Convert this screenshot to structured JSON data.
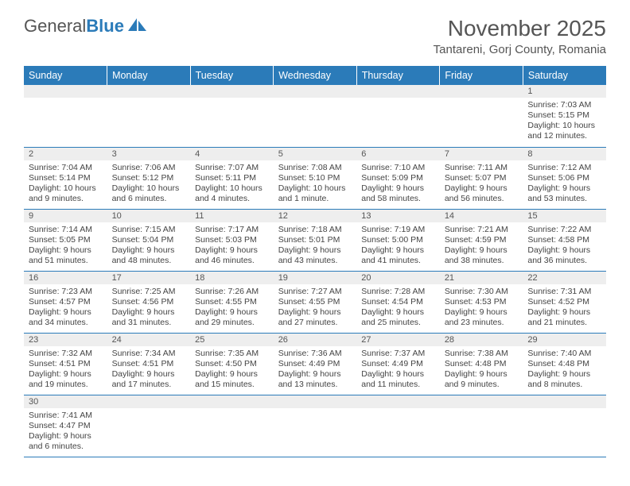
{
  "logo": {
    "part1": "General",
    "part2": "Blue"
  },
  "title": "November 2025",
  "location": "Tantareni, Gorj County, Romania",
  "colors": {
    "header_bg": "#2b7bb9",
    "header_text": "#ffffff",
    "daynum_bg": "#eeeeee",
    "border": "#2b7bb9",
    "text": "#444444",
    "title_text": "#555555"
  },
  "days_of_week": [
    "Sunday",
    "Monday",
    "Tuesday",
    "Wednesday",
    "Thursday",
    "Friday",
    "Saturday"
  ],
  "weeks": [
    [
      null,
      null,
      null,
      null,
      null,
      null,
      {
        "n": "1",
        "sunrise": "Sunrise: 7:03 AM",
        "sunset": "Sunset: 5:15 PM",
        "daylight": "Daylight: 10 hours and 12 minutes."
      }
    ],
    [
      {
        "n": "2",
        "sunrise": "Sunrise: 7:04 AM",
        "sunset": "Sunset: 5:14 PM",
        "daylight": "Daylight: 10 hours and 9 minutes."
      },
      {
        "n": "3",
        "sunrise": "Sunrise: 7:06 AM",
        "sunset": "Sunset: 5:12 PM",
        "daylight": "Daylight: 10 hours and 6 minutes."
      },
      {
        "n": "4",
        "sunrise": "Sunrise: 7:07 AM",
        "sunset": "Sunset: 5:11 PM",
        "daylight": "Daylight: 10 hours and 4 minutes."
      },
      {
        "n": "5",
        "sunrise": "Sunrise: 7:08 AM",
        "sunset": "Sunset: 5:10 PM",
        "daylight": "Daylight: 10 hours and 1 minute."
      },
      {
        "n": "6",
        "sunrise": "Sunrise: 7:10 AM",
        "sunset": "Sunset: 5:09 PM",
        "daylight": "Daylight: 9 hours and 58 minutes."
      },
      {
        "n": "7",
        "sunrise": "Sunrise: 7:11 AM",
        "sunset": "Sunset: 5:07 PM",
        "daylight": "Daylight: 9 hours and 56 minutes."
      },
      {
        "n": "8",
        "sunrise": "Sunrise: 7:12 AM",
        "sunset": "Sunset: 5:06 PM",
        "daylight": "Daylight: 9 hours and 53 minutes."
      }
    ],
    [
      {
        "n": "9",
        "sunrise": "Sunrise: 7:14 AM",
        "sunset": "Sunset: 5:05 PM",
        "daylight": "Daylight: 9 hours and 51 minutes."
      },
      {
        "n": "10",
        "sunrise": "Sunrise: 7:15 AM",
        "sunset": "Sunset: 5:04 PM",
        "daylight": "Daylight: 9 hours and 48 minutes."
      },
      {
        "n": "11",
        "sunrise": "Sunrise: 7:17 AM",
        "sunset": "Sunset: 5:03 PM",
        "daylight": "Daylight: 9 hours and 46 minutes."
      },
      {
        "n": "12",
        "sunrise": "Sunrise: 7:18 AM",
        "sunset": "Sunset: 5:01 PM",
        "daylight": "Daylight: 9 hours and 43 minutes."
      },
      {
        "n": "13",
        "sunrise": "Sunrise: 7:19 AM",
        "sunset": "Sunset: 5:00 PM",
        "daylight": "Daylight: 9 hours and 41 minutes."
      },
      {
        "n": "14",
        "sunrise": "Sunrise: 7:21 AM",
        "sunset": "Sunset: 4:59 PM",
        "daylight": "Daylight: 9 hours and 38 minutes."
      },
      {
        "n": "15",
        "sunrise": "Sunrise: 7:22 AM",
        "sunset": "Sunset: 4:58 PM",
        "daylight": "Daylight: 9 hours and 36 minutes."
      }
    ],
    [
      {
        "n": "16",
        "sunrise": "Sunrise: 7:23 AM",
        "sunset": "Sunset: 4:57 PM",
        "daylight": "Daylight: 9 hours and 34 minutes."
      },
      {
        "n": "17",
        "sunrise": "Sunrise: 7:25 AM",
        "sunset": "Sunset: 4:56 PM",
        "daylight": "Daylight: 9 hours and 31 minutes."
      },
      {
        "n": "18",
        "sunrise": "Sunrise: 7:26 AM",
        "sunset": "Sunset: 4:55 PM",
        "daylight": "Daylight: 9 hours and 29 minutes."
      },
      {
        "n": "19",
        "sunrise": "Sunrise: 7:27 AM",
        "sunset": "Sunset: 4:55 PM",
        "daylight": "Daylight: 9 hours and 27 minutes."
      },
      {
        "n": "20",
        "sunrise": "Sunrise: 7:28 AM",
        "sunset": "Sunset: 4:54 PM",
        "daylight": "Daylight: 9 hours and 25 minutes."
      },
      {
        "n": "21",
        "sunrise": "Sunrise: 7:30 AM",
        "sunset": "Sunset: 4:53 PM",
        "daylight": "Daylight: 9 hours and 23 minutes."
      },
      {
        "n": "22",
        "sunrise": "Sunrise: 7:31 AM",
        "sunset": "Sunset: 4:52 PM",
        "daylight": "Daylight: 9 hours and 21 minutes."
      }
    ],
    [
      {
        "n": "23",
        "sunrise": "Sunrise: 7:32 AM",
        "sunset": "Sunset: 4:51 PM",
        "daylight": "Daylight: 9 hours and 19 minutes."
      },
      {
        "n": "24",
        "sunrise": "Sunrise: 7:34 AM",
        "sunset": "Sunset: 4:51 PM",
        "daylight": "Daylight: 9 hours and 17 minutes."
      },
      {
        "n": "25",
        "sunrise": "Sunrise: 7:35 AM",
        "sunset": "Sunset: 4:50 PM",
        "daylight": "Daylight: 9 hours and 15 minutes."
      },
      {
        "n": "26",
        "sunrise": "Sunrise: 7:36 AM",
        "sunset": "Sunset: 4:49 PM",
        "daylight": "Daylight: 9 hours and 13 minutes."
      },
      {
        "n": "27",
        "sunrise": "Sunrise: 7:37 AM",
        "sunset": "Sunset: 4:49 PM",
        "daylight": "Daylight: 9 hours and 11 minutes."
      },
      {
        "n": "28",
        "sunrise": "Sunrise: 7:38 AM",
        "sunset": "Sunset: 4:48 PM",
        "daylight": "Daylight: 9 hours and 9 minutes."
      },
      {
        "n": "29",
        "sunrise": "Sunrise: 7:40 AM",
        "sunset": "Sunset: 4:48 PM",
        "daylight": "Daylight: 9 hours and 8 minutes."
      }
    ],
    [
      {
        "n": "30",
        "sunrise": "Sunrise: 7:41 AM",
        "sunset": "Sunset: 4:47 PM",
        "daylight": "Daylight: 9 hours and 6 minutes."
      },
      null,
      null,
      null,
      null,
      null,
      null
    ]
  ]
}
